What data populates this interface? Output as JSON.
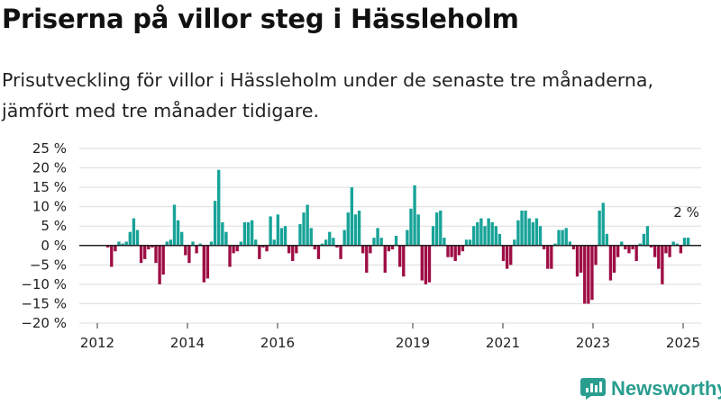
{
  "title": "Priserna på villor steg i Hässleholm",
  "subtitle": "Prisutveckling för villor i Hässleholm under de senaste tre månaderna, jämfört med tre månader tidigare.",
  "brand": {
    "name": "Newsworthy",
    "icon": "newsworthy-logo-icon"
  },
  "colors": {
    "positive": "#17a398",
    "negative": "#9e0d44",
    "grid": "#dddddd",
    "zero_line": "#222222"
  },
  "chart_data": {
    "type": "bar",
    "ylim": [
      -20,
      25
    ],
    "y_ticks": [
      25,
      20,
      15,
      10,
      5,
      0,
      -5,
      -10,
      -15,
      -20
    ],
    "y_tick_labels": [
      "25 %",
      "20 %",
      "15 %",
      "10 %",
      "5 %",
      "0 %",
      "−5 %",
      "−10 %",
      "−15 %",
      "−20 %"
    ],
    "x_start_year": 2011.6,
    "x_end_year": 2025.4,
    "x_ticks": [
      2012,
      2014,
      2016,
      2019,
      2021,
      2023,
      2025
    ],
    "x_tick_labels": [
      "2012",
      "2014",
      "2016",
      "2019",
      "2021",
      "2023",
      "2025"
    ],
    "grid": true,
    "annotation": {
      "text": "2 %",
      "value": 2
    },
    "values": [
      -0.5,
      -5.5,
      -1.5,
      1,
      0.5,
      1,
      3.5,
      7,
      4,
      -4.5,
      -3.5,
      -1,
      -0.5,
      -4.5,
      -10,
      -7.5,
      1,
      1.5,
      10.5,
      6.5,
      3.5,
      -2.5,
      -4.5,
      1,
      -2,
      0.5,
      -9.5,
      -8.5,
      1,
      11.5,
      19.5,
      6,
      3.5,
      -5.5,
      -2,
      -1.5,
      1,
      6,
      6,
      6.5,
      1.5,
      -3.5,
      -0.5,
      -1.5,
      7.5,
      1.5,
      8,
      4.5,
      5,
      -2,
      -4,
      -2,
      5.5,
      8.5,
      10.5,
      4.5,
      -1,
      -3.5,
      0.5,
      1.5,
      3.5,
      2,
      -0.5,
      -3.5,
      4,
      8.5,
      15,
      8,
      9,
      -2,
      -7,
      -2,
      2,
      4.5,
      2,
      -7,
      -1.5,
      -1,
      2.5,
      -5.5,
      -8,
      4,
      9.5,
      15.5,
      8,
      -9,
      -10,
      -9.5,
      5,
      8.5,
      9,
      2,
      -3,
      -3,
      -4,
      -2.5,
      -1.5,
      1.5,
      1.5,
      5,
      6,
      7,
      5,
      7,
      6,
      5,
      3,
      -4,
      -6,
      -5,
      1.5,
      6.5,
      9,
      9,
      7,
      6,
      7,
      5,
      -1,
      -6,
      -6,
      0.5,
      4,
      4,
      4.5,
      1,
      -1,
      -8,
      -7,
      -15,
      -15,
      -14,
      -5,
      9,
      11,
      3,
      -9,
      -7,
      -3,
      1,
      -1,
      -2,
      -1,
      -4,
      0.5,
      3,
      5,
      -0.5,
      -3,
      -6,
      -10,
      -2,
      -3,
      1,
      0.5,
      -2,
      2,
      2
    ]
  }
}
